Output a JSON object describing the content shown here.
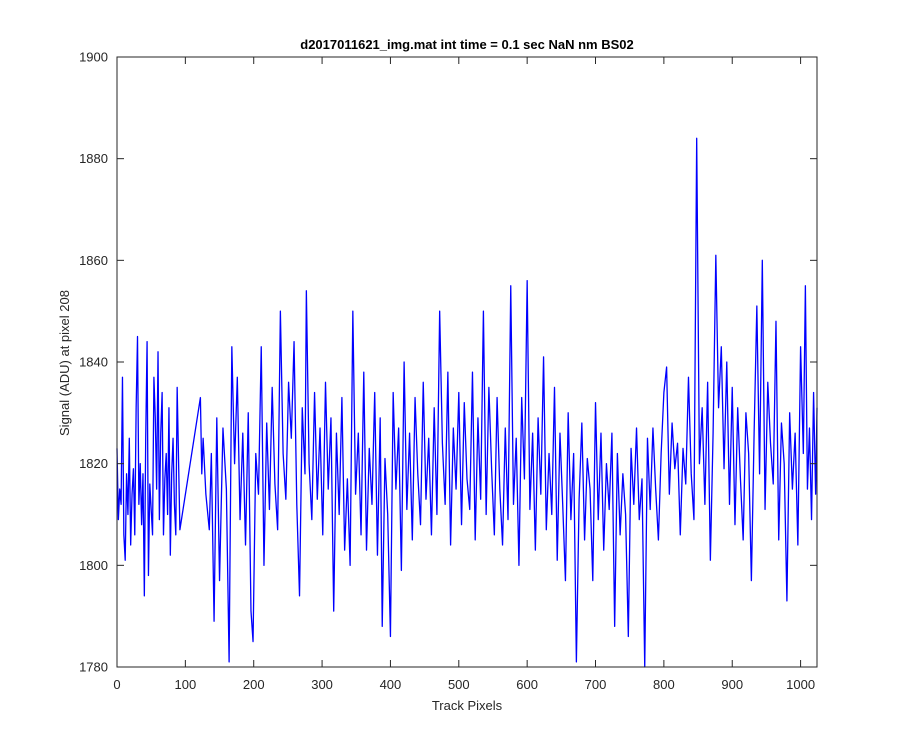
{
  "chart_data": {
    "type": "line",
    "title": "d2017011621_img.mat int time = 0.1 sec  NaN nm BS02",
    "xlabel": "Track Pixels",
    "ylabel": "Signal (ADU) at pixel 208",
    "xlim": [
      0,
      1024
    ],
    "ylim": [
      1780,
      1900
    ],
    "xticks": [
      0,
      100,
      200,
      300,
      400,
      500,
      600,
      700,
      800,
      900,
      1000
    ],
    "yticks": [
      1780,
      1800,
      1820,
      1840,
      1860,
      1880,
      1900
    ],
    "grid": false,
    "line_color": "#0000ff",
    "axis_color": "#262626",
    "series": [
      {
        "points": [
          [
            0,
            1823
          ],
          [
            2,
            1809
          ],
          [
            4,
            1815
          ],
          [
            6,
            1812
          ],
          [
            8,
            1837
          ],
          [
            10,
            1806
          ],
          [
            12,
            1801
          ],
          [
            14,
            1818
          ],
          [
            16,
            1810
          ],
          [
            18,
            1825
          ],
          [
            20,
            1804
          ],
          [
            22,
            1814
          ],
          [
            24,
            1819
          ],
          [
            26,
            1806
          ],
          [
            28,
            1831
          ],
          [
            30,
            1845
          ],
          [
            32,
            1812
          ],
          [
            34,
            1820
          ],
          [
            36,
            1808
          ],
          [
            38,
            1818
          ],
          [
            40,
            1794
          ],
          [
            42,
            1825
          ],
          [
            44,
            1844
          ],
          [
            46,
            1798
          ],
          [
            48,
            1816
          ],
          [
            50,
            1811
          ],
          [
            52,
            1806
          ],
          [
            54,
            1837
          ],
          [
            56,
            1829
          ],
          [
            58,
            1815
          ],
          [
            60,
            1842
          ],
          [
            62,
            1809
          ],
          [
            64,
            1826
          ],
          [
            66,
            1834
          ],
          [
            68,
            1806
          ],
          [
            70,
            1817
          ],
          [
            72,
            1822
          ],
          [
            74,
            1810
          ],
          [
            76,
            1831
          ],
          [
            78,
            1802
          ],
          [
            80,
            1818
          ],
          [
            82,
            1825
          ],
          [
            84,
            1812
          ],
          [
            86,
            1806
          ],
          [
            88,
            1835
          ],
          [
            90,
            1821
          ],
          [
            92,
            1807
          ],
          [
            122,
            1833
          ],
          [
            124,
            1818
          ],
          [
            126,
            1825
          ],
          [
            130,
            1814
          ],
          [
            135,
            1807
          ],
          [
            138,
            1822
          ],
          [
            142,
            1789
          ],
          [
            146,
            1829
          ],
          [
            150,
            1797
          ],
          [
            155,
            1827
          ],
          [
            160,
            1815
          ],
          [
            164,
            1781
          ],
          [
            168,
            1843
          ],
          [
            172,
            1820
          ],
          [
            176,
            1837
          ],
          [
            180,
            1809
          ],
          [
            184,
            1826
          ],
          [
            188,
            1804
          ],
          [
            192,
            1830
          ],
          [
            196,
            1791
          ],
          [
            199,
            1785
          ],
          [
            203,
            1822
          ],
          [
            207,
            1814
          ],
          [
            211,
            1843
          ],
          [
            215,
            1800
          ],
          [
            219,
            1828
          ],
          [
            223,
            1811
          ],
          [
            227,
            1835
          ],
          [
            231,
            1816
          ],
          [
            235,
            1807
          ],
          [
            239,
            1850
          ],
          [
            243,
            1822
          ],
          [
            247,
            1813
          ],
          [
            251,
            1836
          ],
          [
            255,
            1825
          ],
          [
            259,
            1844
          ],
          [
            263,
            1812
          ],
          [
            267,
            1794
          ],
          [
            271,
            1831
          ],
          [
            275,
            1818
          ],
          [
            277,
            1854
          ],
          [
            281,
            1820
          ],
          [
            285,
            1809
          ],
          [
            289,
            1834
          ],
          [
            293,
            1813
          ],
          [
            297,
            1827
          ],
          [
            301,
            1806
          ],
          [
            305,
            1836
          ],
          [
            309,
            1815
          ],
          [
            313,
            1829
          ],
          [
            317,
            1791
          ],
          [
            321,
            1826
          ],
          [
            325,
            1810
          ],
          [
            329,
            1833
          ],
          [
            333,
            1803
          ],
          [
            337,
            1817
          ],
          [
            341,
            1800
          ],
          [
            345,
            1850
          ],
          [
            349,
            1814
          ],
          [
            353,
            1826
          ],
          [
            357,
            1806
          ],
          [
            361,
            1838
          ],
          [
            365,
            1803
          ],
          [
            369,
            1823
          ],
          [
            373,
            1812
          ],
          [
            377,
            1834
          ],
          [
            381,
            1802
          ],
          [
            385,
            1829
          ],
          [
            388,
            1788
          ],
          [
            392,
            1821
          ],
          [
            396,
            1810
          ],
          [
            400,
            1786
          ],
          [
            404,
            1834
          ],
          [
            408,
            1815
          ],
          [
            412,
            1827
          ],
          [
            416,
            1799
          ],
          [
            420,
            1840
          ],
          [
            424,
            1811
          ],
          [
            428,
            1826
          ],
          [
            432,
            1805
          ],
          [
            436,
            1833
          ],
          [
            440,
            1818
          ],
          [
            444,
            1808
          ],
          [
            448,
            1836
          ],
          [
            452,
            1813
          ],
          [
            456,
            1825
          ],
          [
            460,
            1806
          ],
          [
            464,
            1831
          ],
          [
            468,
            1810
          ],
          [
            472,
            1850
          ],
          [
            476,
            1824
          ],
          [
            480,
            1812
          ],
          [
            484,
            1838
          ],
          [
            488,
            1804
          ],
          [
            492,
            1827
          ],
          [
            496,
            1815
          ],
          [
            500,
            1834
          ],
          [
            504,
            1808
          ],
          [
            508,
            1832
          ],
          [
            512,
            1817
          ],
          [
            516,
            1811
          ],
          [
            520,
            1838
          ],
          [
            524,
            1805
          ],
          [
            528,
            1829
          ],
          [
            532,
            1813
          ],
          [
            536,
            1850
          ],
          [
            540,
            1810
          ],
          [
            544,
            1835
          ],
          [
            548,
            1819
          ],
          [
            552,
            1806
          ],
          [
            556,
            1833
          ],
          [
            560,
            1815
          ],
          [
            564,
            1804
          ],
          [
            568,
            1827
          ],
          [
            572,
            1809
          ],
          [
            576,
            1855
          ],
          [
            580,
            1812
          ],
          [
            584,
            1825
          ],
          [
            588,
            1800
          ],
          [
            592,
            1833
          ],
          [
            596,
            1817
          ],
          [
            600,
            1856
          ],
          [
            604,
            1811
          ],
          [
            608,
            1826
          ],
          [
            612,
            1803
          ],
          [
            616,
            1829
          ],
          [
            620,
            1814
          ],
          [
            624,
            1841
          ],
          [
            628,
            1807
          ],
          [
            632,
            1822
          ],
          [
            636,
            1810
          ],
          [
            640,
            1835
          ],
          [
            644,
            1801
          ],
          [
            648,
            1826
          ],
          [
            652,
            1812
          ],
          [
            656,
            1797
          ],
          [
            660,
            1830
          ],
          [
            664,
            1809
          ],
          [
            668,
            1822
          ],
          [
            672,
            1781
          ],
          [
            676,
            1813
          ],
          [
            680,
            1828
          ],
          [
            684,
            1805
          ],
          [
            688,
            1821
          ],
          [
            692,
            1815
          ],
          [
            696,
            1797
          ],
          [
            700,
            1832
          ],
          [
            704,
            1809
          ],
          [
            708,
            1826
          ],
          [
            712,
            1803
          ],
          [
            716,
            1820
          ],
          [
            720,
            1811
          ],
          [
            724,
            1826
          ],
          [
            728,
            1788
          ],
          [
            732,
            1822
          ],
          [
            736,
            1806
          ],
          [
            740,
            1818
          ],
          [
            744,
            1810
          ],
          [
            748,
            1786
          ],
          [
            752,
            1823
          ],
          [
            756,
            1812
          ],
          [
            760,
            1827
          ],
          [
            764,
            1809
          ],
          [
            768,
            1817
          ],
          [
            772,
            1780
          ],
          [
            776,
            1825
          ],
          [
            780,
            1811
          ],
          [
            784,
            1827
          ],
          [
            788,
            1815
          ],
          [
            792,
            1805
          ],
          [
            796,
            1822
          ],
          [
            800,
            1834
          ],
          [
            804,
            1839
          ],
          [
            808,
            1814
          ],
          [
            812,
            1828
          ],
          [
            816,
            1819
          ],
          [
            820,
            1824
          ],
          [
            824,
            1806
          ],
          [
            828,
            1823
          ],
          [
            832,
            1816
          ],
          [
            836,
            1837
          ],
          [
            840,
            1818
          ],
          [
            844,
            1809
          ],
          [
            848,
            1884
          ],
          [
            852,
            1820
          ],
          [
            856,
            1831
          ],
          [
            860,
            1812
          ],
          [
            864,
            1836
          ],
          [
            868,
            1801
          ],
          [
            872,
            1826
          ],
          [
            876,
            1861
          ],
          [
            880,
            1831
          ],
          [
            884,
            1843
          ],
          [
            888,
            1819
          ],
          [
            892,
            1840
          ],
          [
            896,
            1812
          ],
          [
            900,
            1835
          ],
          [
            904,
            1808
          ],
          [
            908,
            1831
          ],
          [
            912,
            1817
          ],
          [
            916,
            1805
          ],
          [
            920,
            1830
          ],
          [
            924,
            1822
          ],
          [
            928,
            1797
          ],
          [
            932,
            1826
          ],
          [
            936,
            1851
          ],
          [
            940,
            1818
          ],
          [
            944,
            1860
          ],
          [
            948,
            1811
          ],
          [
            952,
            1836
          ],
          [
            956,
            1824
          ],
          [
            960,
            1816
          ],
          [
            964,
            1848
          ],
          [
            968,
            1805
          ],
          [
            972,
            1828
          ],
          [
            976,
            1820
          ],
          [
            980,
            1793
          ],
          [
            984,
            1830
          ],
          [
            988,
            1815
          ],
          [
            992,
            1826
          ],
          [
            996,
            1804
          ],
          [
            1000,
            1843
          ],
          [
            1004,
            1822
          ],
          [
            1007,
            1855
          ],
          [
            1010,
            1815
          ],
          [
            1013,
            1827
          ],
          [
            1016,
            1809
          ],
          [
            1019,
            1834
          ],
          [
            1022,
            1814
          ],
          [
            1024,
            1831
          ]
        ]
      }
    ]
  }
}
